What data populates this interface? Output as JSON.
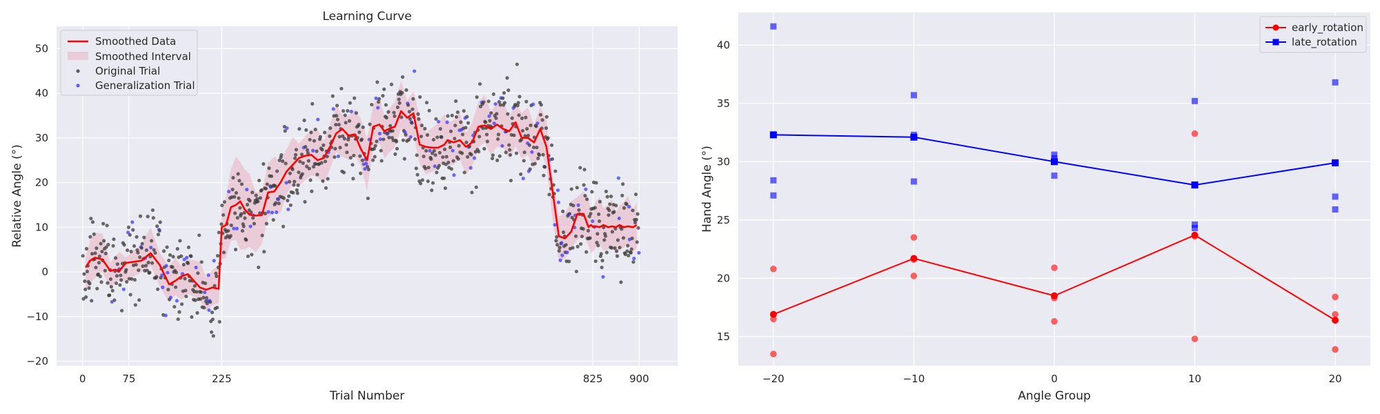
{
  "chart_data": [
    {
      "type": "scatter",
      "title": "Learning Curve",
      "xlabel": "Trial Number",
      "ylabel": "Relative Angle (°)",
      "xlim": [
        -42,
        962
      ],
      "ylim": [
        -21,
        55
      ],
      "xticks": [
        0,
        75,
        225,
        825,
        900
      ],
      "yticks": [
        -20,
        -10,
        0,
        10,
        20,
        30,
        40,
        50
      ],
      "grid": true,
      "legend_position": "top-left",
      "legend": [
        "Smoothed Data",
        "Smoothed Interval",
        "Original Trial",
        "Generalization Trial"
      ],
      "colors": {
        "smoothed": "#ff0000",
        "interval": "#e8a8b8",
        "original": "#3a3a3a",
        "generalization": "#3b3bff",
        "background": "#eaeaf2"
      },
      "smoothed_breakpoints": {
        "x": [
          5,
          12,
          20,
          32,
          45,
          52,
          60,
          70,
          80,
          95,
          110,
          125,
          140,
          150,
          160,
          170,
          180,
          190,
          200,
          210,
          220,
          225,
          232,
          240,
          248,
          255,
          262,
          270,
          280,
          290,
          300,
          310,
          320,
          330,
          340,
          350,
          360,
          370,
          380,
          390,
          400,
          410,
          420,
          430,
          440,
          450,
          460,
          470,
          480,
          488,
          495,
          505,
          515,
          525,
          535,
          545,
          555,
          565,
          575,
          585,
          590,
          600,
          610,
          620,
          630,
          640,
          650,
          660,
          670,
          680,
          690,
          700,
          710,
          720,
          730,
          740,
          750,
          760,
          770,
          780,
          790,
          800,
          810,
          818,
          822,
          826,
          830,
          836,
          842,
          850,
          856,
          862,
          868,
          875,
          882,
          890,
          896
        ],
        "y": [
          1,
          2.5,
          3.2,
          2.8,
          0.2,
          0.5,
          0.3,
          2.0,
          2.2,
          2.5,
          4.2,
          1.5,
          -2.8,
          -2.0,
          -1.0,
          -0.5,
          -2.0,
          -3.5,
          -4.0,
          -3.5,
          -3.8,
          10.0,
          10.5,
          14.5,
          15.0,
          15.8,
          14.0,
          12.8,
          12.6,
          12.7,
          17.8,
          18.0,
          20.0,
          22.5,
          24.0,
          25.5,
          26.0,
          26.2,
          25.0,
          25.5,
          28.0,
          31.0,
          32.0,
          30.5,
          30.8,
          27.5,
          25.0,
          32.5,
          33.0,
          31.5,
          32.0,
          32.5,
          36.0,
          34.5,
          35.5,
          28.5,
          28.0,
          27.8,
          27.8,
          28.5,
          29.5,
          29.0,
          29.5,
          28.0,
          29.0,
          32.5,
          32.8,
          32.0,
          33.0,
          32.0,
          31.5,
          33.5,
          30.0,
          30.0,
          29.0,
          32.0,
          28.0,
          18.0,
          8.0,
          7.5,
          9.0,
          13.0,
          13.0,
          10.0,
          10.5,
          10.0,
          10.2,
          10.0,
          10.5,
          10.0,
          10.2,
          10.0,
          10.5,
          10.0,
          10.2,
          10.0,
          10.5
        ],
        "note_removed": true
      },
      "smoothed": {
        "x": [
          5,
          12,
          20,
          32,
          45,
          52,
          60,
          70,
          80,
          95,
          110,
          125,
          140,
          150,
          160,
          170,
          180,
          190,
          200,
          210,
          220,
          225,
          232,
          240,
          248,
          255,
          262,
          270,
          280,
          290,
          300,
          310,
          320,
          330,
          340,
          350,
          360,
          370,
          380,
          390,
          400,
          410,
          420,
          430,
          440,
          450,
          460,
          470,
          480,
          488,
          495,
          505,
          515,
          525,
          535,
          545,
          555,
          565,
          575,
          585,
          590,
          600,
          610,
          620,
          630,
          640,
          650,
          660,
          670,
          680,
          690,
          700,
          710,
          720,
          730,
          740,
          750,
          760,
          770,
          780,
          790,
          800,
          810,
          818,
          822,
          826,
          830,
          836,
          842,
          850,
          856,
          862,
          868,
          875,
          882,
          890,
          896
        ],
        "y": [
          1,
          2.5,
          3.2,
          2.8,
          0.2,
          0.5,
          0.3,
          2.0,
          2.2,
          2.5,
          4.2,
          1.5,
          -2.8,
          -2.0,
          -1.0,
          -0.5,
          -2.0,
          -3.5,
          -4.0,
          -3.5,
          -3.8,
          10.0,
          10.5,
          14.5,
          15.0,
          15.8,
          14.0,
          12.8,
          12.6,
          12.7,
          17.8,
          18.0,
          20.0,
          22.5,
          24.0,
          25.5,
          26.0,
          26.2,
          25.0,
          25.5,
          28.0,
          31.0,
          32.0,
          30.5,
          30.8,
          27.5,
          25.0,
          32.5,
          33.0,
          31.5,
          32.0,
          32.5,
          36.0,
          34.5,
          35.5,
          28.5,
          28.0,
          27.8,
          27.8,
          28.5,
          29.5,
          29.0,
          29.5,
          28.0,
          29.0,
          32.5,
          32.8,
          32.0,
          33.0,
          32.0,
          31.5,
          33.5,
          30.0,
          30.0,
          29.0,
          32.0,
          28.0,
          18.0,
          8.0,
          7.5,
          9.0,
          13.0,
          13.0,
          10.0,
          10.5,
          10.0,
          10.2,
          10.0,
          10.5,
          10.0,
          10.2,
          10.0,
          10.5,
          10.0,
          10.2,
          10.0,
          10.5
        ]
      },
      "interval_halfwidth": [
        4,
        5,
        5,
        4,
        3,
        3,
        3,
        3,
        3,
        3,
        4,
        4,
        4,
        4,
        4,
        4,
        4,
        4,
        4,
        4,
        4,
        6,
        7,
        8,
        9,
        10,
        9,
        8,
        7,
        6,
        6,
        6,
        6,
        5,
        5,
        5,
        5,
        5,
        5,
        5,
        5,
        5,
        5,
        5,
        5,
        5,
        6,
        5,
        5,
        5,
        5,
        5,
        5,
        5,
        5,
        5,
        5,
        5,
        5,
        5,
        5,
        5,
        5,
        5,
        5,
        5,
        5,
        5,
        5,
        5,
        5,
        5,
        5,
        5,
        5,
        5,
        5,
        5,
        5,
        5,
        5,
        5,
        5,
        5,
        5,
        5,
        5,
        5,
        5,
        5,
        5,
        5,
        5,
        5,
        5,
        5,
        5
      ]
    },
    {
      "type": "line",
      "title": "",
      "xlabel": "Angle Group",
      "ylabel": "Hand Angle (°)",
      "xlim": [
        -22.5,
        22.5
      ],
      "ylim": [
        12.5,
        42.8
      ],
      "xticks": [
        -20,
        -10,
        0,
        10,
        20
      ],
      "xtick_labels": [
        "−20",
        "−10",
        "0",
        "10",
        "20"
      ],
      "yticks": [
        15,
        20,
        25,
        30,
        35,
        40
      ],
      "grid": true,
      "legend_position": "top-right",
      "series": [
        {
          "name": "early_rotation",
          "color": "#ff0000",
          "marker": "circle",
          "x": [
            -20,
            -10,
            0,
            10,
            20
          ],
          "mean": [
            16.9,
            21.7,
            18.5,
            23.7,
            16.4
          ],
          "points": [
            {
              "x": -20,
              "y": 20.8
            },
            {
              "x": -20,
              "y": 16.5
            },
            {
              "x": -20,
              "y": 13.5
            },
            {
              "x": -10,
              "y": 23.5
            },
            {
              "x": -10,
              "y": 21.6
            },
            {
              "x": -10,
              "y": 20.2
            },
            {
              "x": 0,
              "y": 20.9
            },
            {
              "x": 0,
              "y": 18.3
            },
            {
              "x": 0,
              "y": 16.3
            },
            {
              "x": 10,
              "y": 32.4
            },
            {
              "x": 10,
              "y": 23.6
            },
            {
              "x": 10,
              "y": 14.8
            },
            {
              "x": 20,
              "y": 18.4
            },
            {
              "x": 20,
              "y": 16.9
            },
            {
              "x": 20,
              "y": 13.9
            }
          ]
        },
        {
          "name": "late_rotation",
          "color": "#0000ff",
          "marker": "square",
          "x": [
            -20,
            -10,
            0,
            10,
            20
          ],
          "mean": [
            32.3,
            32.1,
            30.0,
            28.0,
            29.9
          ],
          "points": [
            {
              "x": -20,
              "y": 41.6
            },
            {
              "x": -20,
              "y": 28.4
            },
            {
              "x": -20,
              "y": 27.1
            },
            {
              "x": -10,
              "y": 35.7
            },
            {
              "x": -10,
              "y": 32.3
            },
            {
              "x": -10,
              "y": 28.3
            },
            {
              "x": 0,
              "y": 30.6
            },
            {
              "x": 0,
              "y": 30.3
            },
            {
              "x": 0,
              "y": 28.8
            },
            {
              "x": 10,
              "y": 35.2
            },
            {
              "x": 10,
              "y": 24.6
            },
            {
              "x": 10,
              "y": 24.3
            },
            {
              "x": 20,
              "y": 36.8
            },
            {
              "x": 20,
              "y": 27.0
            },
            {
              "x": 20,
              "y": 25.9
            }
          ]
        }
      ]
    }
  ]
}
